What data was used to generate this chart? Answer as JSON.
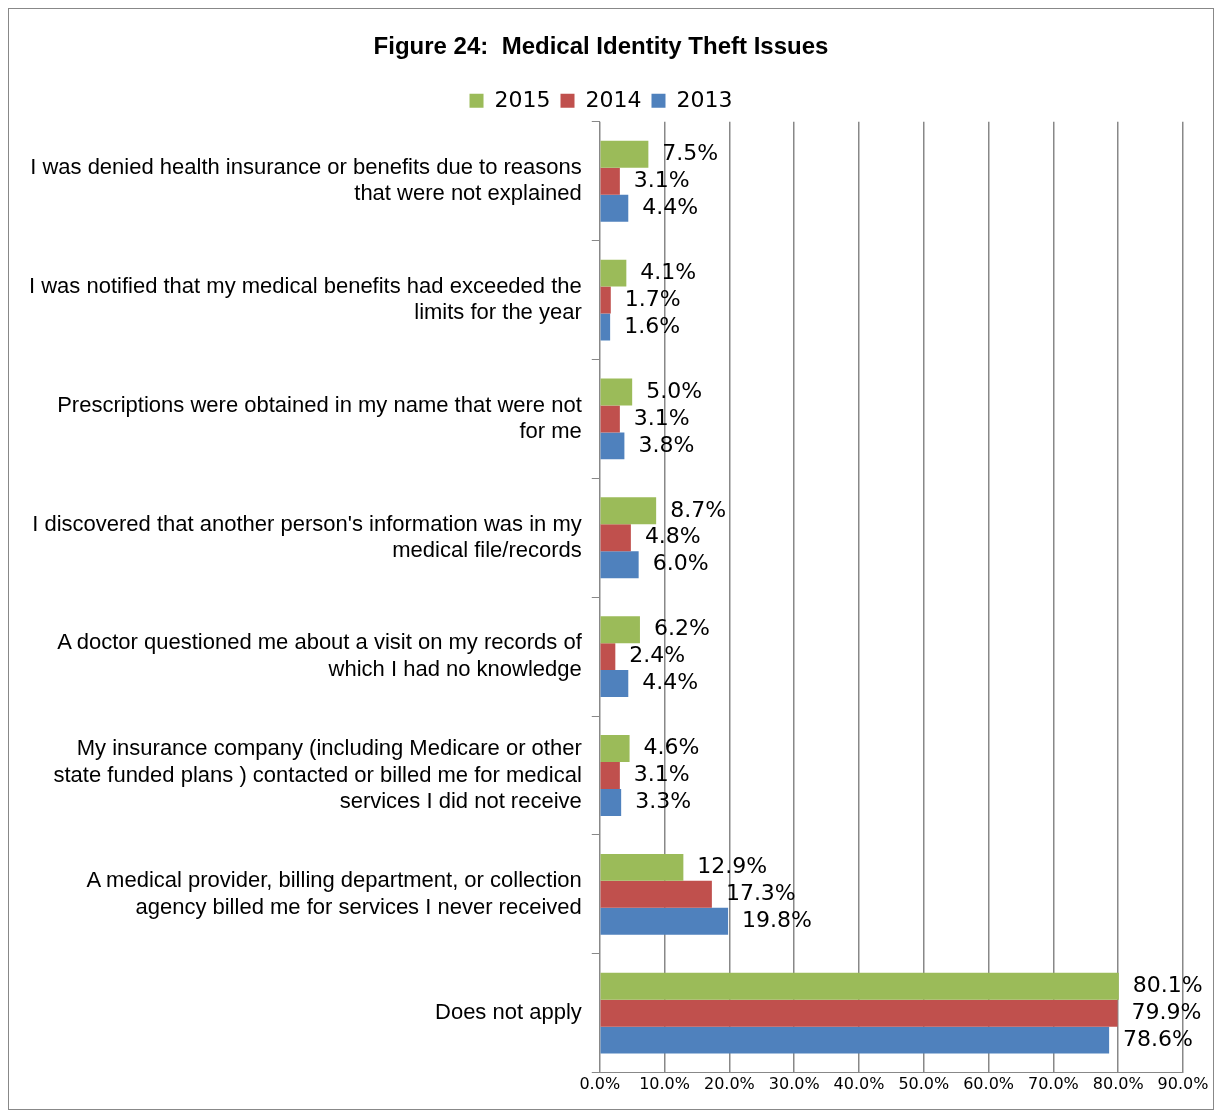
{
  "chart_data": {
    "type": "bar",
    "orientation": "horizontal",
    "title": "Figure 24:  Medical Identity Theft Issues",
    "categories": [
      "I was denied health insurance or benefits due to reasons that were not explained",
      "I was notified that my medical benefits had exceeded the limits for the year",
      "Prescriptions were obtained in my name that were not for me",
      "I discovered that another person's information was in my medical file/records",
      "A doctor questioned me about a visit on my records of which I had no knowledge",
      "My insurance company (including Medicare or other state funded plans ) contacted or billed me for medical services I did not receive",
      "A medical provider, billing department, or collection agency billed me for services I never received",
      "Does not apply"
    ],
    "series": [
      {
        "name": "2015",
        "color": "#9bbb59",
        "values": [
          7.5,
          4.1,
          5.0,
          8.7,
          6.2,
          4.6,
          12.9,
          80.1
        ],
        "value_labels": [
          "7.5%",
          "4.1%",
          "5.0%",
          "8.7%",
          "6.2%",
          "4.6%",
          "12.9%",
          "80.1%"
        ]
      },
      {
        "name": "2014",
        "color": "#c0504d",
        "values": [
          3.1,
          1.7,
          3.1,
          4.8,
          2.4,
          3.1,
          17.3,
          79.9
        ],
        "value_labels": [
          "3.1%",
          "1.7%",
          "3.1%",
          "4.8%",
          "2.4%",
          "3.1%",
          "17.3%",
          "79.9%"
        ]
      },
      {
        "name": "2013",
        "color": "#4f81bd",
        "values": [
          4.4,
          1.6,
          3.8,
          6.0,
          4.4,
          3.3,
          19.8,
          78.6
        ],
        "value_labels": [
          "4.4%",
          "1.6%",
          "3.8%",
          "6.0%",
          "4.4%",
          "3.3%",
          "19.8%",
          "78.6%"
        ]
      }
    ],
    "xlim": [
      0,
      90
    ],
    "xticks": [
      {
        "value": 0,
        "label": "0.0%"
      },
      {
        "value": 10,
        "label": "10.0%"
      },
      {
        "value": 20,
        "label": "20.0%"
      },
      {
        "value": 30,
        "label": "30.0%"
      },
      {
        "value": 40,
        "label": "40.0%"
      },
      {
        "value": 50,
        "label": "50.0%"
      },
      {
        "value": 60,
        "label": "60.0%"
      },
      {
        "value": 70,
        "label": "70.0%"
      },
      {
        "value": 80,
        "label": "80.0%"
      },
      {
        "value": 90,
        "label": "90.0%"
      }
    ],
    "grid": "x",
    "legend": "top"
  }
}
